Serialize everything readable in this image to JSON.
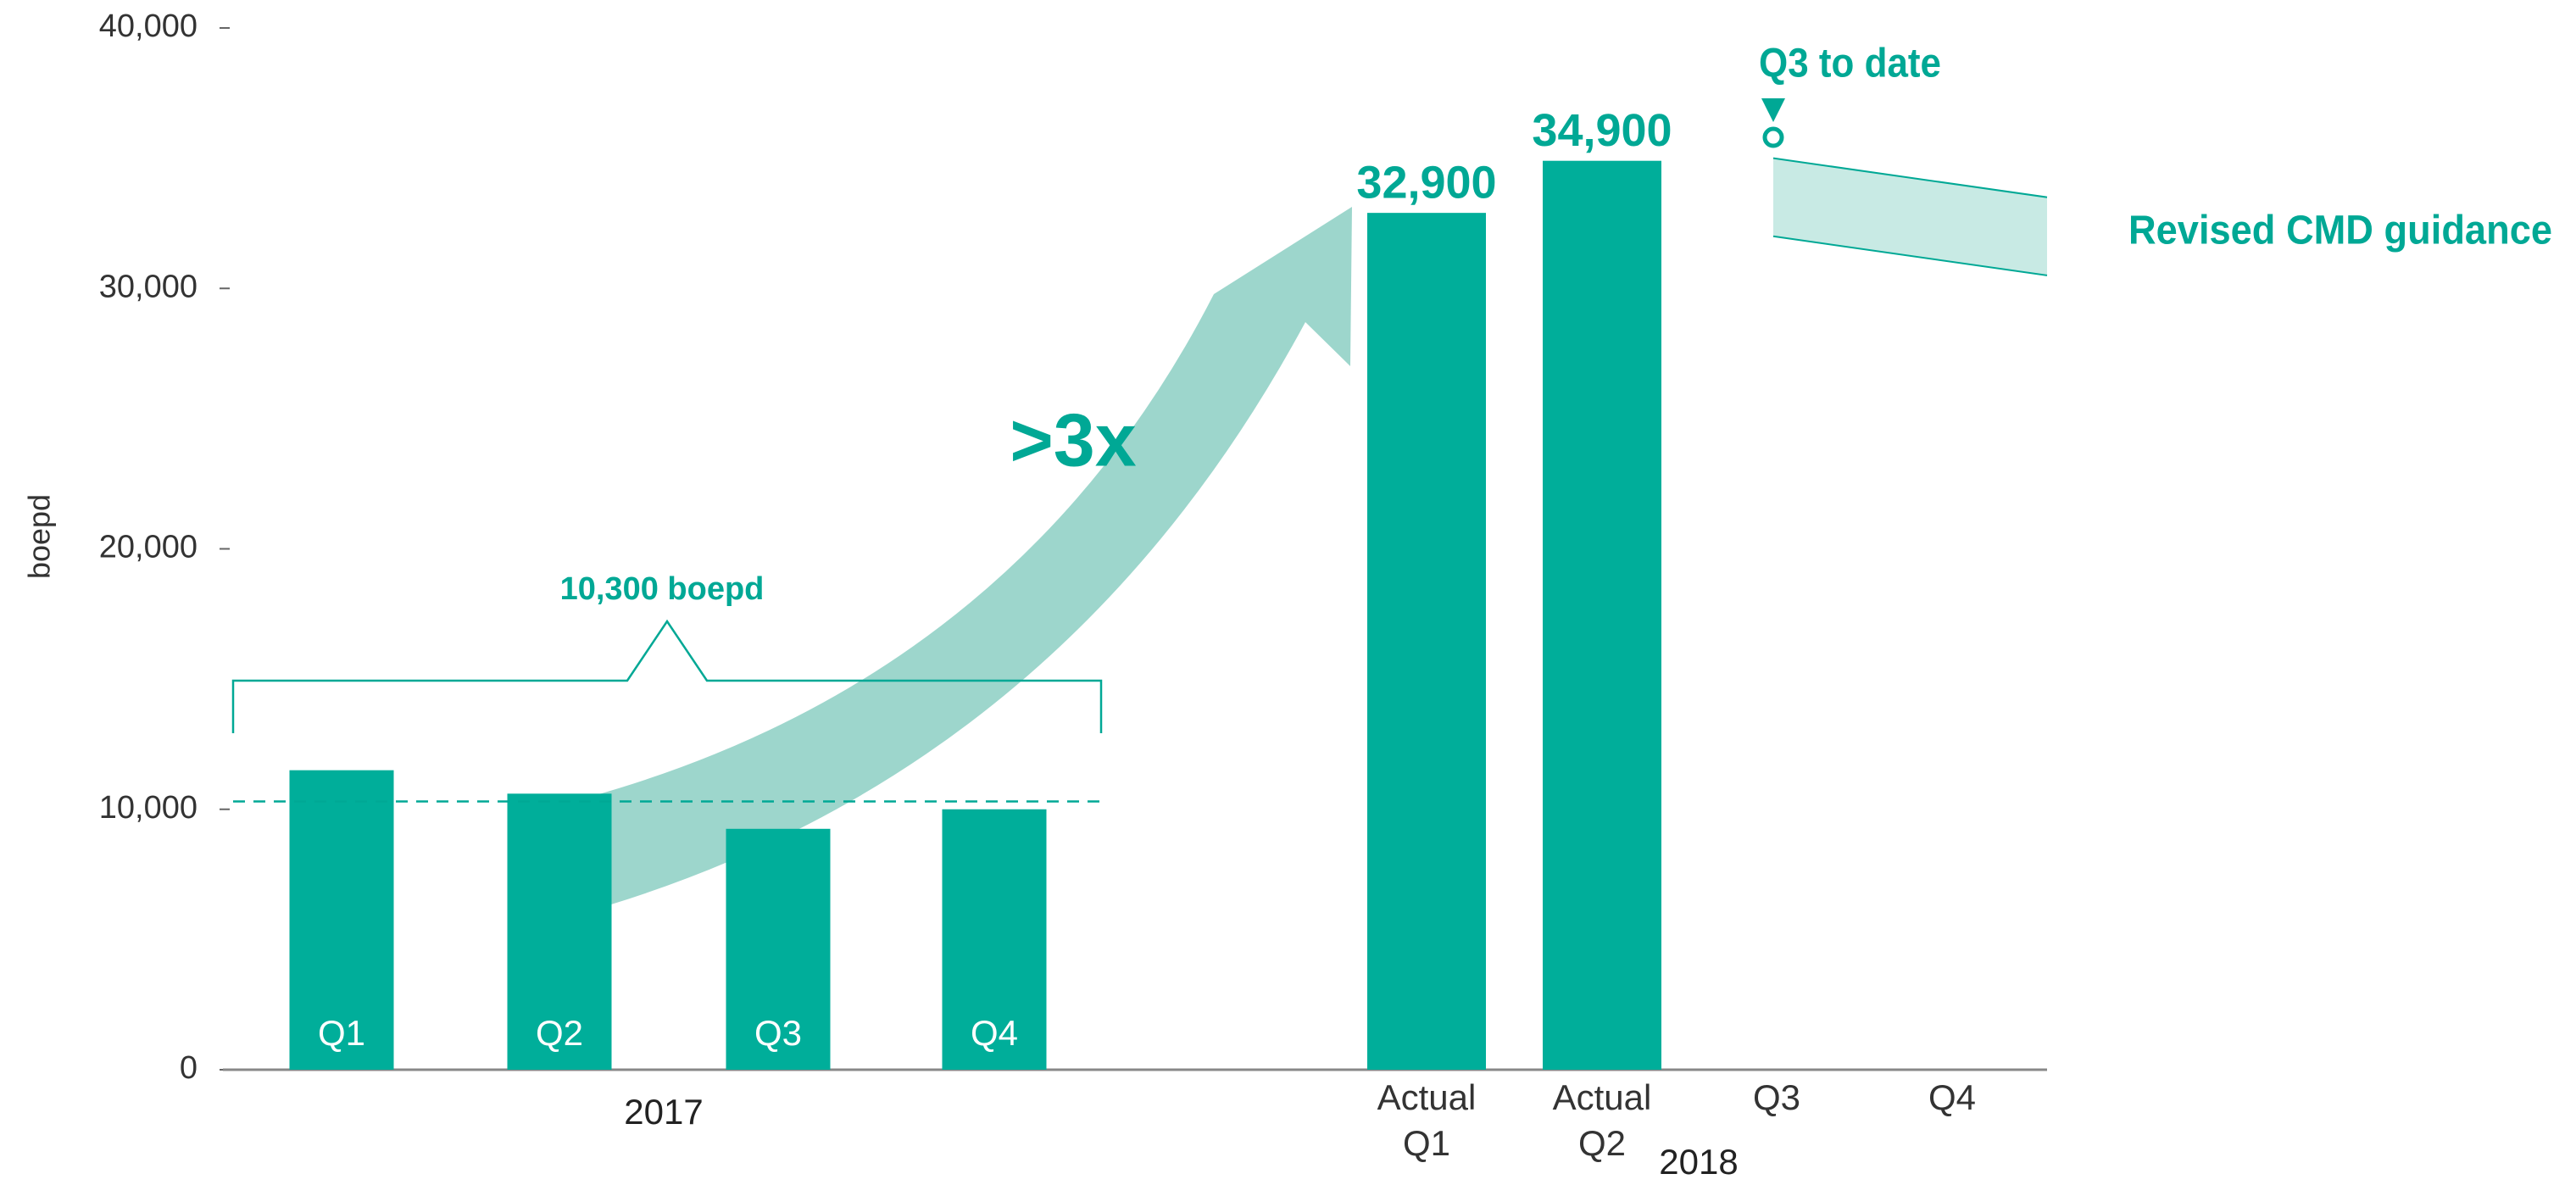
{
  "chart_data": {
    "type": "bar",
    "y_label": "boepd",
    "categories": [
      "Q1",
      "Q2",
      "Q3",
      "Q4",
      "Actual Q1",
      "Actual Q2",
      "Q3",
      "Q4"
    ],
    "values": [
      11500,
      10600,
      9250,
      10000,
      32900,
      34900,
      null,
      null
    ],
    "value_labels": [
      null,
      null,
      null,
      null,
      "32,900",
      "34,900",
      null,
      null
    ],
    "color": "#00ae9a",
    "groups": [
      "2017",
      "2018"
    ],
    "ylim": [
      0,
      40000
    ],
    "yticks": [
      0,
      {
        "value": 10000,
        "label": "10,000"
      },
      {
        "value": 20000,
        "label": "20,000"
      },
      {
        "value": 30000,
        "label": "30,000"
      },
      {
        "value": 40000,
        "label": "40,000"
      }
    ],
    "reference": {
      "label": "10,300 boepd",
      "value": 10300
    },
    "growth_label": ">3x",
    "q3_to_date": {
      "label": "Q3 to date",
      "value": 35800
    },
    "guidance": {
      "label": "Revised CMD guidance",
      "upper": [
        35000,
        33500
      ],
      "lower": [
        32000,
        30500
      ],
      "color": "#c8eae4"
    }
  }
}
